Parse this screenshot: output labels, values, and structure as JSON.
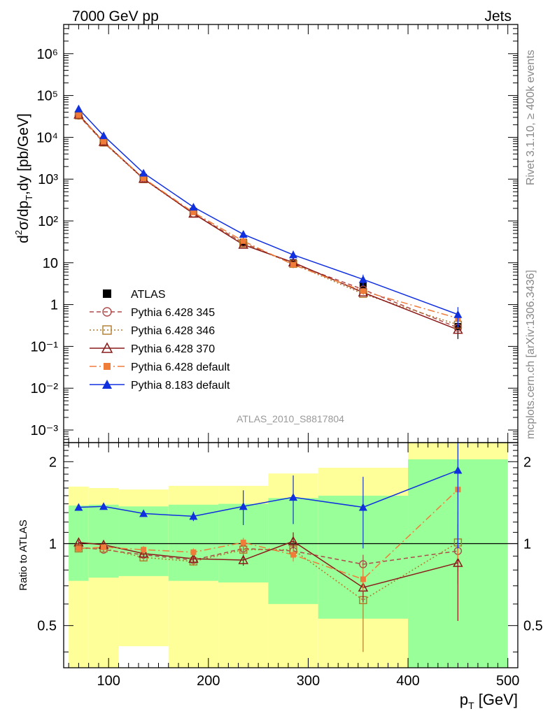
{
  "header": {
    "left": "7000 GeV pp",
    "right": "Jets"
  },
  "side_labels": {
    "rivet": "Rivet 3.1.10, ≥ 400k events",
    "mcplots": "mcplots.cern.ch [arXiv:1306.3436]"
  },
  "analysis_label": "ATLAS_2010_S8817804",
  "colors": {
    "data": "#000000",
    "p345": "#b04a4a",
    "p346": "#b07a2a",
    "p370": "#8b1a1a",
    "p6def": "#f07c3a",
    "p8def": "#1030e0",
    "band_green": "#99ff99",
    "band_yellow": "#ffff99"
  },
  "chart_data": [
    {
      "type": "line",
      "scale": "log",
      "title": "7000 GeV pp  Jets",
      "ylabel": "d²σ/dp_T,dy [pb/GeV]",
      "ylim": [
        0.0005,
        5000000
      ],
      "ytick_labels": [
        "10^-3",
        "10^-2",
        "10^-1",
        "1",
        "10",
        "10^2",
        "10^3",
        "10^4",
        "10^5",
        "10^6"
      ],
      "x": [
        70,
        95,
        135,
        185,
        235,
        285,
        355,
        450
      ],
      "series": [
        {
          "name": "ATLAS",
          "values": [
            35000,
            7900,
            1100,
            170,
            31,
            10,
            2.8,
            0.3
          ]
        },
        {
          "name": "Pythia 6.428 345",
          "values": [
            33000,
            7500,
            1050,
            150,
            30,
            9.5,
            2.3,
            0.28
          ]
        },
        {
          "name": "Pythia 6.428 346",
          "values": [
            33500,
            7500,
            1000,
            150,
            29,
            9.4,
            1.8,
            0.33
          ]
        },
        {
          "name": "Pythia 6.428 370",
          "values": [
            35000,
            7800,
            1020,
            150,
            27,
            10.2,
            1.95,
            0.25
          ]
        },
        {
          "name": "Pythia 6.428 default",
          "values": [
            33800,
            7800,
            1050,
            160,
            33,
            9.0,
            2.1,
            0.47
          ]
        },
        {
          "name": "Pythia 8.183 default",
          "values": [
            48000,
            11000,
            1400,
            215,
            48,
            15.5,
            4.0,
            0.58
          ]
        }
      ]
    },
    {
      "type": "line",
      "ylabel": "Ratio to ATLAS",
      "xlabel": "p_T [GeV]",
      "ylim": [
        0.35,
        2.35
      ],
      "xlim": [
        55,
        510
      ],
      "xtick_labels": [
        "100",
        "200",
        "300",
        "400",
        "500"
      ],
      "ytick_labels": [
        "0.5",
        "1",
        "2"
      ],
      "x": [
        70,
        95,
        135,
        185,
        235,
        285,
        355,
        450
      ],
      "series": [
        {
          "name": "Pythia 6.428 345",
          "values": [
            0.97,
            0.95,
            0.91,
            0.87,
            0.96,
            0.94,
            0.84,
            0.94
          ]
        },
        {
          "name": "Pythia 6.428 346",
          "values": [
            0.96,
            0.96,
            0.89,
            0.86,
            0.95,
            0.95,
            0.62,
            1.01
          ]
        },
        {
          "name": "Pythia 6.428 370",
          "values": [
            1.01,
            0.99,
            0.92,
            0.88,
            0.87,
            1.02,
            0.69,
            0.85
          ]
        },
        {
          "name": "Pythia 6.428 default",
          "values": [
            0.96,
            0.97,
            0.95,
            0.93,
            1.01,
            0.91,
            0.74,
            1.58
          ]
        },
        {
          "name": "Pythia 8.183 default",
          "values": [
            1.36,
            1.37,
            1.29,
            1.26,
            1.37,
            1.48,
            1.36,
            1.86
          ]
        }
      ],
      "bands": [
        {
          "x0": 60,
          "x1": 80,
          "g_lo": 0.73,
          "g_hi": 1.38,
          "y_lo": 0.35,
          "y_hi": 1.62
        },
        {
          "x0": 80,
          "x1": 110,
          "g_lo": 0.75,
          "g_hi": 1.39,
          "y_lo": 0.35,
          "y_hi": 1.6
        },
        {
          "x0": 110,
          "x1": 160,
          "g_lo": 0.76,
          "g_hi": 1.37,
          "y_lo": 0.42,
          "y_hi": 1.58
        },
        {
          "x0": 160,
          "x1": 210,
          "g_lo": 0.73,
          "g_hi": 1.39,
          "y_lo": 0.35,
          "y_hi": 1.63
        },
        {
          "x0": 210,
          "x1": 260,
          "g_lo": 0.72,
          "g_hi": 1.4,
          "y_lo": 0.35,
          "y_hi": 1.63
        },
        {
          "x0": 260,
          "x1": 310,
          "g_lo": 0.6,
          "g_hi": 1.47,
          "y_lo": 0.35,
          "y_hi": 1.81
        },
        {
          "x0": 310,
          "x1": 400,
          "g_lo": 0.53,
          "g_hi": 1.5,
          "y_lo": 0.35,
          "y_hi": 1.9
        },
        {
          "x0": 400,
          "x1": 500,
          "g_lo": 0.35,
          "g_hi": 2.04,
          "y_lo": 0.35,
          "y_hi": 2.35
        }
      ]
    }
  ]
}
